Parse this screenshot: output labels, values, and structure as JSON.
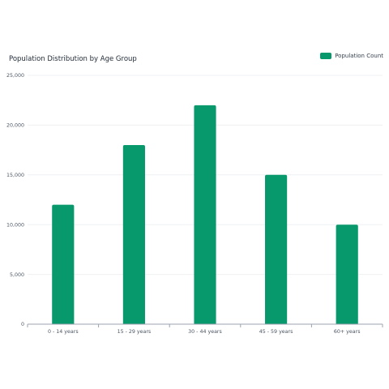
{
  "chart_data": {
    "type": "bar",
    "title": "Population Distribution by Age Group",
    "xlabel": "",
    "ylabel": "",
    "categories": [
      "0 - 14 years",
      "15 - 29 years",
      "30 - 44 years",
      "45 - 59 years",
      "60+ years"
    ],
    "series": [
      {
        "name": "Population Count",
        "values": [
          12000,
          18000,
          22000,
          15000,
          10000
        ]
      }
    ],
    "ylim": [
      0,
      25000
    ],
    "y_ticks": [
      "0",
      "5,000",
      "10,000",
      "15,000",
      "20,000",
      "25,000"
    ],
    "grid": true,
    "legend_position": "top-right",
    "colors": {
      "bar": "#07986b",
      "grid": "#eef0f3",
      "axis": "#9ca3af"
    }
  }
}
